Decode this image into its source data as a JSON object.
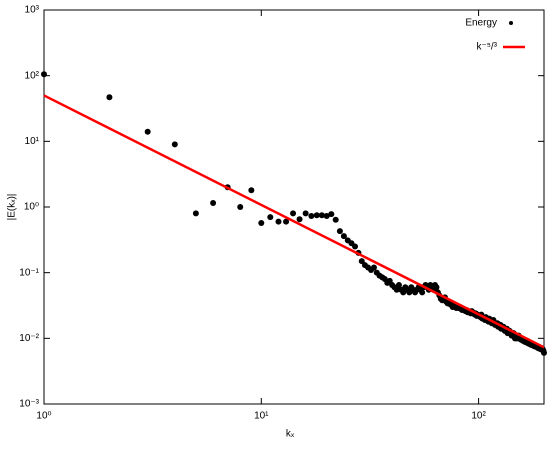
{
  "chart_data": {
    "type": "scatter",
    "xlabel": "kₓ",
    "ylabel": "|E(kₓ)|",
    "log_x": true,
    "log_y": true,
    "legend": "upper right",
    "xlim": [
      1,
      200
    ],
    "ylim": [
      0.001,
      1000
    ],
    "xticks": [
      {
        "value": 1,
        "label": "10⁰"
      },
      {
        "value": 10,
        "label": "10¹"
      },
      {
        "value": 100,
        "label": "10²"
      }
    ],
    "yticks": [
      {
        "value": 0.001,
        "label": "10⁻³"
      },
      {
        "value": 0.01,
        "label": "10⁻²"
      },
      {
        "value": 0.1,
        "label": "10⁻¹"
      },
      {
        "value": 1,
        "label": "10⁰"
      },
      {
        "value": 10,
        "label": "10¹"
      },
      {
        "value": 100,
        "label": "10²"
      },
      {
        "value": 1000,
        "label": "10³"
      }
    ],
    "series": [
      {
        "name": "Energy",
        "type": "scatter",
        "color": "#000000",
        "x": [
          1,
          2,
          3,
          4,
          5,
          6,
          7,
          8,
          9,
          10,
          11,
          12,
          13,
          14,
          15,
          16,
          17,
          18,
          19,
          20,
          21,
          22,
          23,
          24,
          25,
          26,
          27,
          28,
          29,
          30,
          31,
          32,
          33,
          34,
          35,
          36,
          37,
          38,
          39,
          40,
          41,
          42,
          43,
          44,
          45,
          46,
          47,
          48,
          49,
          50,
          51,
          52,
          53,
          54,
          55,
          56,
          57,
          58,
          59,
          60,
          61,
          62,
          63,
          64,
          65,
          66,
          67,
          68,
          69,
          70,
          71,
          72,
          73,
          74,
          75,
          76,
          77,
          78,
          79,
          80,
          81,
          82,
          83,
          84,
          85,
          86,
          87,
          88,
          89,
          90,
          91,
          92,
          93,
          94,
          95,
          96,
          97,
          98,
          99,
          100,
          101,
          102,
          103,
          104,
          105,
          106,
          107,
          108,
          109,
          110,
          111,
          112,
          113,
          114,
          115,
          116,
          117,
          118,
          119,
          120,
          121,
          122,
          123,
          124,
          125,
          126,
          127,
          128,
          129,
          130,
          131,
          132,
          133,
          134,
          135,
          136,
          137,
          138,
          139,
          140,
          141,
          142,
          143,
          144,
          145,
          146,
          147,
          148,
          149,
          150,
          151,
          152,
          153,
          154,
          155,
          156,
          157,
          158,
          159,
          160,
          161,
          162,
          163,
          164,
          165,
          166,
          167,
          168,
          169,
          170,
          171,
          172,
          173,
          174,
          175,
          176,
          177,
          178,
          179,
          180,
          181,
          182,
          183,
          184,
          185,
          186,
          187,
          188,
          189,
          190,
          191,
          192,
          193,
          194,
          195,
          196,
          197,
          198,
          199,
          200
        ],
        "values": [
          105,
          47,
          14,
          9,
          0.8,
          1.15,
          2,
          1,
          1.8,
          0.57,
          0.7,
          0.6,
          0.6,
          0.8,
          0.65,
          0.8,
          0.73,
          0.75,
          0.75,
          0.73,
          0.78,
          0.64,
          0.43,
          0.36,
          0.31,
          0.28,
          0.25,
          0.2,
          0.15,
          0.13,
          0.12,
          0.11,
          0.12,
          0.1,
          0.09,
          0.085,
          0.08,
          0.07,
          0.075,
          0.065,
          0.06,
          0.055,
          0.065,
          0.055,
          0.05,
          0.06,
          0.055,
          0.05,
          0.06,
          0.055,
          0.05,
          0.055,
          0.06,
          0.055,
          0.05,
          0.06,
          0.065,
          0.06,
          0.055,
          0.065,
          0.06,
          0.055,
          0.065,
          0.06,
          0.05,
          0.045,
          0.04,
          0.038,
          0.04,
          0.042,
          0.036,
          0.034,
          0.035,
          0.033,
          0.032,
          0.03,
          0.031,
          0.03,
          0.029,
          0.03,
          0.029,
          0.03,
          0.028,
          0.027,
          0.028,
          0.027,
          0.026,
          0.027,
          0.025,
          0.026,
          0.025,
          0.024,
          0.026,
          0.025,
          0.024,
          0.023,
          0.024,
          0.022,
          0.023,
          0.022,
          0.022,
          0.021,
          0.023,
          0.02,
          0.021,
          0.02,
          0.019,
          0.021,
          0.02,
          0.019,
          0.018,
          0.02,
          0.019,
          0.018,
          0.017,
          0.018,
          0.019,
          0.017,
          0.016,
          0.017,
          0.016,
          0.017,
          0.015,
          0.016,
          0.015,
          0.016,
          0.014,
          0.015,
          0.014,
          0.015,
          0.014,
          0.013,
          0.014,
          0.013,
          0.014,
          0.012,
          0.013,
          0.012,
          0.013,
          0.012,
          0.012,
          0.011,
          0.012,
          0.011,
          0.012,
          0.011,
          0.01,
          0.011,
          0.01,
          0.011,
          0.011,
          0.01,
          0.011,
          0.01,
          0.0098,
          0.01,
          0.0095,
          0.01,
          0.0097,
          0.0092,
          0.0095,
          0.009,
          0.0093,
          0.0088,
          0.009,
          0.0087,
          0.0092,
          0.0085,
          0.0088,
          0.0083,
          0.0086,
          0.0082,
          0.0085,
          0.008,
          0.0083,
          0.0079,
          0.0081,
          0.0078,
          0.008,
          0.0076,
          0.0079,
          0.0075,
          0.0078,
          0.0074,
          0.0076,
          0.0073,
          0.0075,
          0.0071,
          0.0074,
          0.007,
          0.0072,
          0.0069,
          0.0071,
          0.0068,
          0.007,
          0.0067,
          0.0069,
          0.0066,
          0.0064,
          0.006
        ]
      },
      {
        "name": "k⁻⁵/³",
        "type": "line",
        "color": "#ff0000",
        "x": [
          1,
          200
        ],
        "values": [
          50,
          0.0073
        ]
      }
    ]
  }
}
